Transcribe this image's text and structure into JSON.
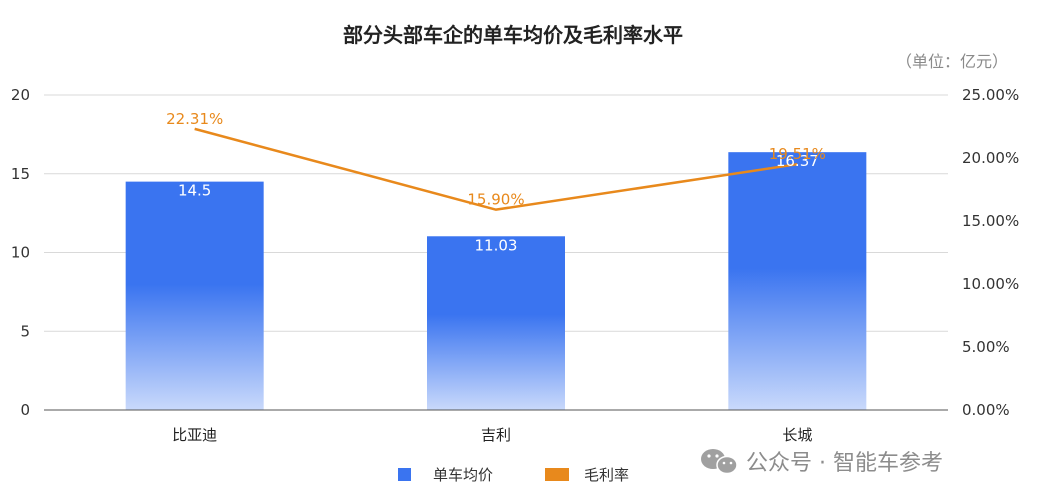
{
  "chart_data": {
    "type": "bar",
    "title": "部分头部车企的单车均价及毛利率水平",
    "unit_note": "（单位：亿元）",
    "categories": [
      "比亚迪",
      "吉利",
      "长城"
    ],
    "series": [
      {
        "name": "单车均价",
        "type": "bar",
        "axis": "left",
        "values": [
          14.5,
          11.03,
          16.37
        ],
        "labels": [
          "14.5",
          "11.03",
          "16.37"
        ],
        "color": "#3a74f0"
      },
      {
        "name": "毛利率",
        "type": "line",
        "axis": "right",
        "values": [
          22.31,
          15.9,
          19.51
        ],
        "labels": [
          "22.31%",
          "15.90%",
          "19.51%"
        ],
        "color": "#e8891c"
      }
    ],
    "y_left": {
      "ylim": [
        0,
        20
      ],
      "ticks": [
        "0",
        "5",
        "10",
        "15",
        "20"
      ]
    },
    "y_right": {
      "ylim": [
        0,
        25
      ],
      "ticks": [
        "0.00%",
        "5.00%",
        "10.00%",
        "15.00%",
        "20.00%",
        "25.00%"
      ]
    },
    "grid": true,
    "legend_position": "bottom"
  },
  "watermark": "公众号 · 智能车参考"
}
